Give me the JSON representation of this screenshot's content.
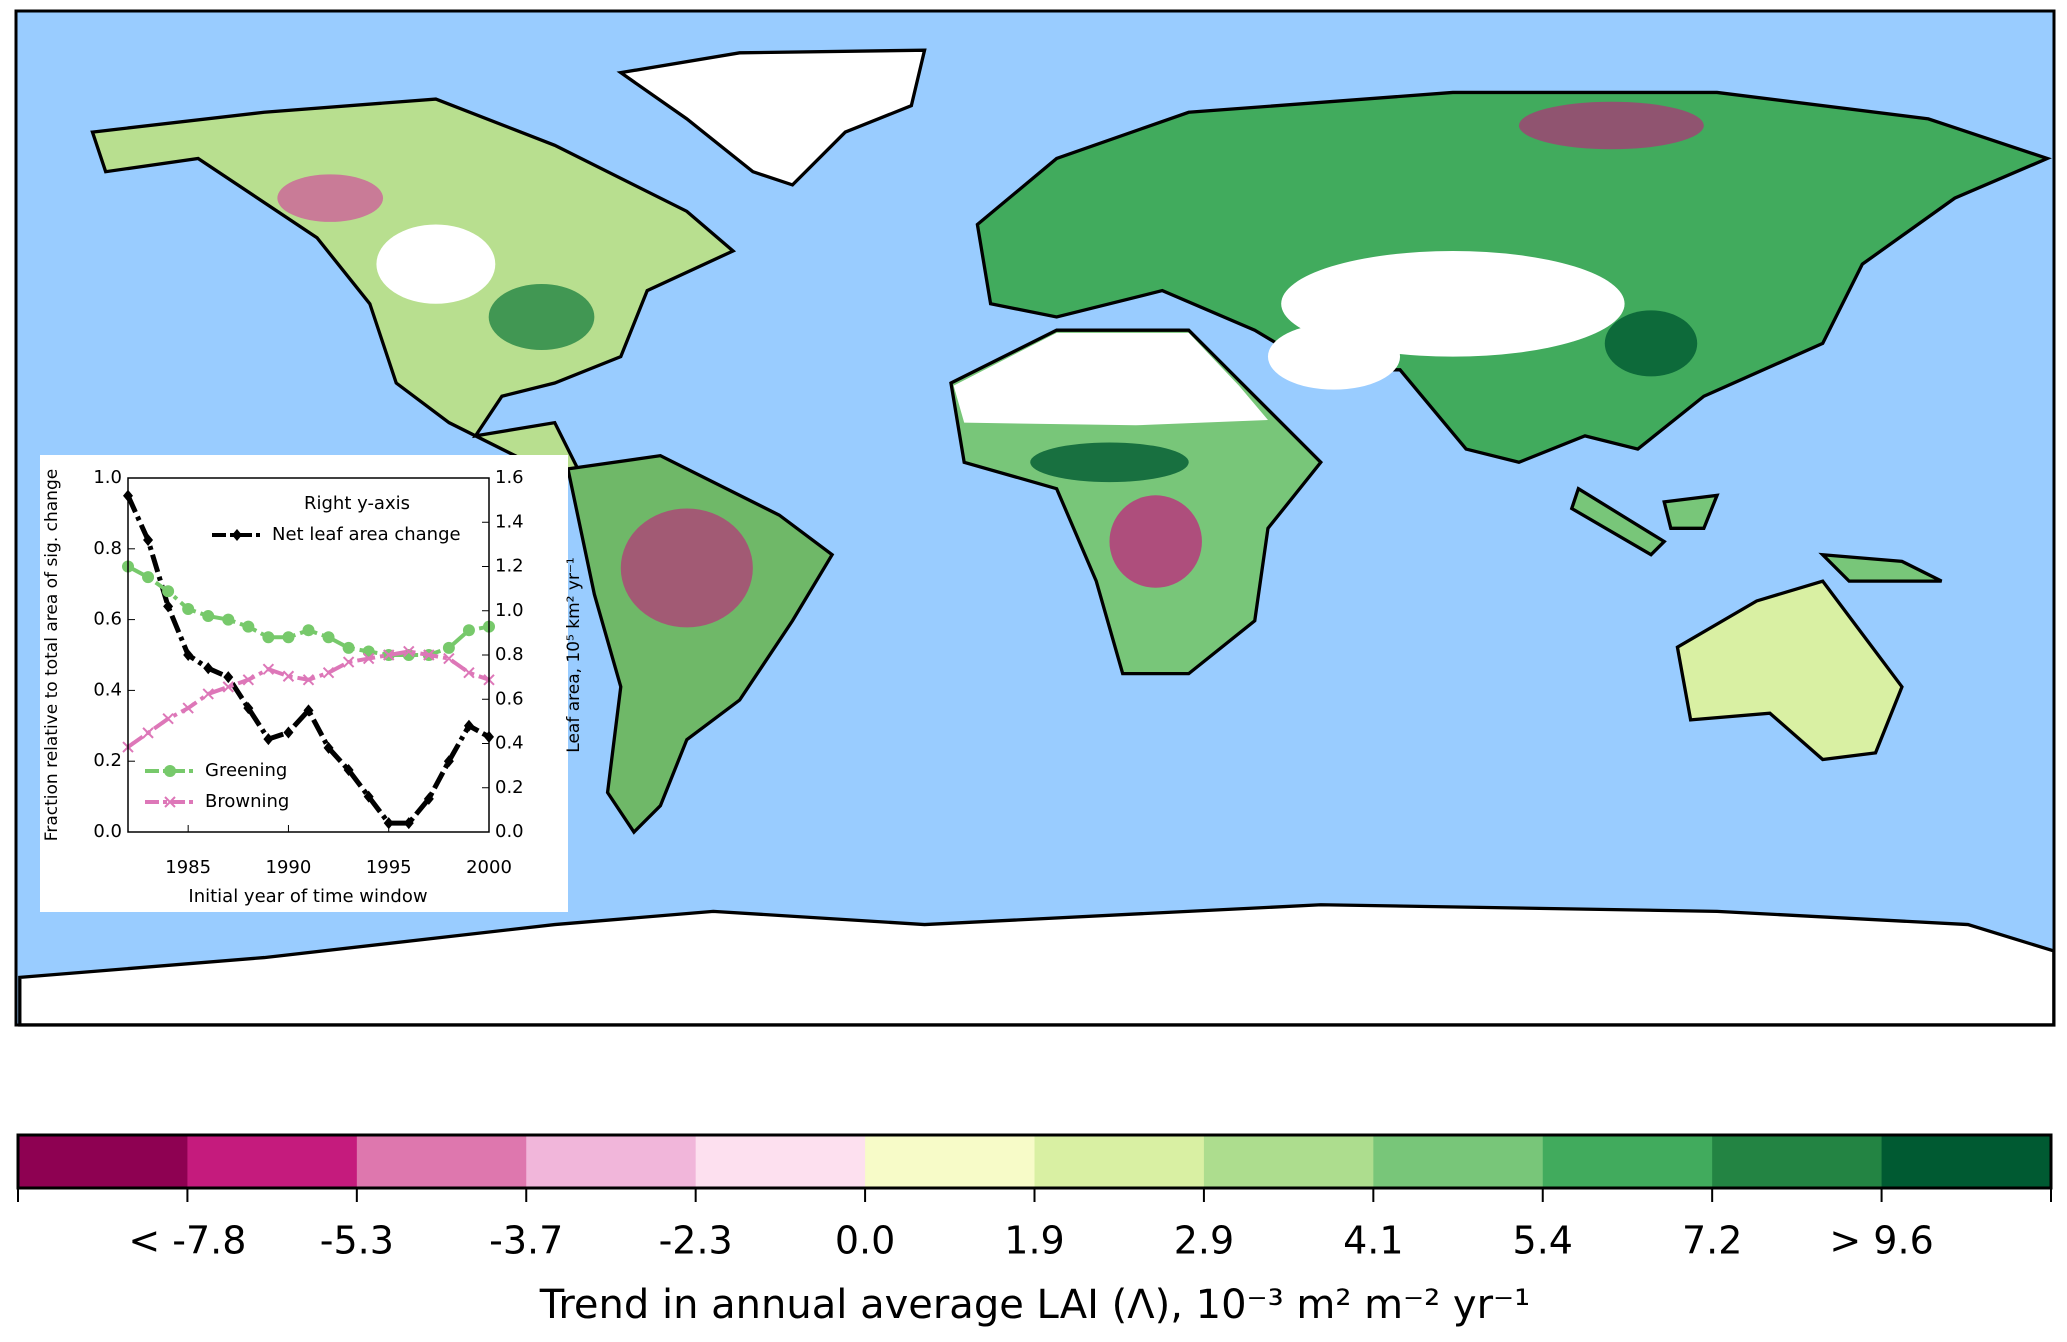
{
  "chart_data": {
    "type": "line",
    "x_label": "Initial year of time window",
    "y_label": "Fraction relative to total area of sig. change",
    "y2_label": "Leaf area, 10⁵ km² yr⁻¹",
    "legend_title": "Right y-axis",
    "x": [
      1982,
      1983,
      1984,
      1985,
      1986,
      1987,
      1988,
      1989,
      1990,
      1991,
      1992,
      1993,
      1994,
      1995,
      1996,
      1997,
      1998,
      1999,
      2000
    ],
    "xlim": [
      1982,
      2000
    ],
    "xticks": [
      1985,
      1990,
      1995,
      2000
    ],
    "ylim": [
      0,
      1
    ],
    "yticks": [
      {
        "value": 0,
        "label": "0.0"
      },
      0.2,
      0.4,
      0.6,
      0.8,
      {
        "value": 1,
        "label": "1.0"
      }
    ],
    "y2lim": [
      0,
      1.6
    ],
    "y2ticks": [
      {
        "value": 0,
        "label": "0.0"
      },
      0.2,
      0.4,
      0.6,
      0.8,
      {
        "value": 1,
        "label": "1.0"
      },
      1.2,
      1.4,
      1.6
    ],
    "series": [
      {
        "name": "Net leaf area change",
        "color": "#000000",
        "axis": "y2",
        "marker": "diamond",
        "values": [
          1.52,
          1.32,
          1.02,
          0.8,
          0.74,
          0.7,
          0.56,
          0.42,
          0.45,
          0.55,
          0.38,
          0.28,
          0.16,
          0.04,
          0.04,
          0.15,
          0.32,
          0.48,
          0.43
        ]
      },
      {
        "name": "Greening",
        "color": "#77c96b",
        "axis": "y",
        "marker": "circle",
        "values": [
          0.75,
          0.72,
          0.68,
          0.63,
          0.61,
          0.6,
          0.58,
          0.55,
          0.55,
          0.57,
          0.55,
          0.52,
          0.51,
          0.5,
          0.5,
          0.5,
          0.52,
          0.57,
          0.58
        ]
      },
      {
        "name": "Browning",
        "color": "#dd77b8",
        "axis": "y",
        "marker": "x",
        "values": [
          0.24,
          0.28,
          0.32,
          0.35,
          0.39,
          0.41,
          0.43,
          0.46,
          0.44,
          0.43,
          0.45,
          0.48,
          0.49,
          0.5,
          0.51,
          0.5,
          0.49,
          0.45,
          0.43
        ]
      }
    ]
  },
  "colorbar": {
    "label": "Trend in annual average LAI (Λ), 10⁻³ m² m⁻² yr⁻¹",
    "colors": [
      "#8e0152",
      "#c51b7d",
      "#de77ae",
      "#f1b6da",
      "#fde0ef",
      "#f7fbc8",
      "#d9f0a3",
      "#addd8e",
      "#78c679",
      "#41ab5d",
      "#238443",
      "#005a32"
    ],
    "tick_labels": [
      "< -7.8",
      "-5.3",
      "-3.7",
      "-2.3",
      "0.0",
      "1.9",
      "2.9",
      "4.1",
      "5.4",
      "7.2",
      "> 9.6"
    ]
  }
}
